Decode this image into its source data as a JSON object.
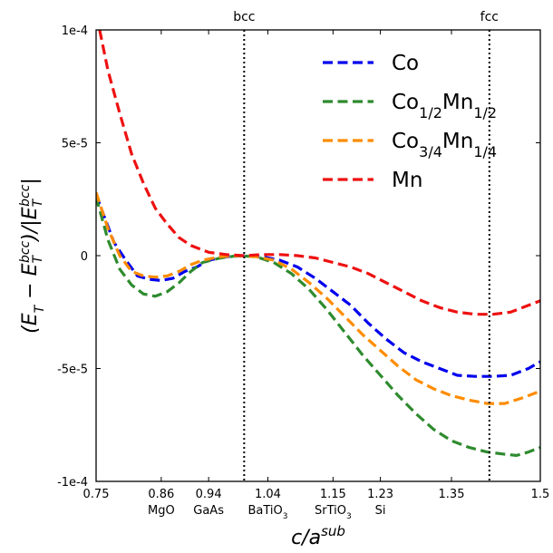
{
  "chart_data": {
    "type": "line",
    "xlabel": "c/a^sub",
    "ylabel": "(E_T − E_T^bcc)/|E_T^bcc|",
    "xlim": [
      0.75,
      1.5
    ],
    "ylim": [
      -0.0001,
      0.0001
    ],
    "x_ticks": [
      "0.75",
      "0.86",
      "0.94",
      "1.04",
      "1.15",
      "1.23",
      "1.35",
      "1.5"
    ],
    "x_tick_values": [
      0.75,
      0.86,
      0.94,
      1.04,
      1.15,
      1.23,
      1.35,
      1.5
    ],
    "x_sublabels": [
      {
        "x": 0.86,
        "text": "MgO"
      },
      {
        "x": 0.94,
        "text": "GaAs"
      },
      {
        "x": 1.04,
        "text": "BaTiO",
        "sub": "3"
      },
      {
        "x": 1.15,
        "text": "SrTiO",
        "sub": "3"
      },
      {
        "x": 1.23,
        "text": "Si"
      }
    ],
    "y_ticks": [
      "1e-4",
      "5e-5",
      "0",
      "-5e-5",
      "-1e-4"
    ],
    "y_tick_values": [
      0.0001,
      5e-05,
      0,
      -5e-05,
      -0.0001
    ],
    "vlines": [
      {
        "x": 1.0,
        "label": "bcc"
      },
      {
        "x": 1.414,
        "label": "fcc"
      }
    ],
    "legend_position": "top-right",
    "grid": false,
    "series": [
      {
        "name": "Co",
        "base": "Co",
        "sub1": "",
        "el2": "",
        "sub2": "",
        "color": "#0000ee",
        "x": [
          0.75,
          0.78,
          0.8,
          0.82,
          0.84,
          0.86,
          0.88,
          0.9,
          0.92,
          0.94,
          0.97,
          1.0,
          1.03,
          1.06,
          1.09,
          1.12,
          1.15,
          1.18,
          1.21,
          1.24,
          1.27,
          1.3,
          1.33,
          1.36,
          1.39,
          1.42,
          1.45,
          1.48,
          1.5
        ],
        "y": [
          2.7e-05,
          6e-06,
          -2e-06,
          -9e-06,
          -1.05e-05,
          -1.1e-05,
          -1e-05,
          -7e-06,
          -5e-06,
          -2e-06,
          -5e-07,
          0,
          -5e-07,
          -2e-06,
          -5e-06,
          -1e-05,
          -1.6e-05,
          -2.2e-05,
          -3e-05,
          -3.7e-05,
          -4.3e-05,
          -4.7e-05,
          -5e-05,
          -5.3e-05,
          -5.35e-05,
          -5.35e-05,
          -5.3e-05,
          -5e-05,
          -4.7e-05
        ]
      },
      {
        "name": "Co1/2Mn1/2",
        "base": "Co",
        "sub1": "1/2",
        "el2": "Mn",
        "sub2": "1/2",
        "color": "#2e8b2e",
        "x": [
          0.75,
          0.77,
          0.79,
          0.81,
          0.83,
          0.85,
          0.87,
          0.89,
          0.91,
          0.93,
          0.96,
          0.99,
          1.02,
          1.05,
          1.08,
          1.11,
          1.14,
          1.17,
          1.2,
          1.23,
          1.26,
          1.29,
          1.32,
          1.35,
          1.38,
          1.41,
          1.44,
          1.46,
          1.48,
          1.5
        ],
        "y": [
          2.6e-05,
          7e-06,
          -6e-06,
          -1.3e-05,
          -1.7e-05,
          -1.8e-05,
          -1.6e-05,
          -1.2e-05,
          -7e-06,
          -3e-06,
          -1e-06,
          0,
          -5e-07,
          -3e-06,
          -8e-06,
          -1.5e-05,
          -2.4e-05,
          -3.4e-05,
          -4.4e-05,
          -5.3e-05,
          -6.2e-05,
          -7e-05,
          -7.7e-05,
          -8.2e-05,
          -8.5e-05,
          -8.7e-05,
          -8.8e-05,
          -8.85e-05,
          -8.7e-05,
          -8.5e-05
        ]
      },
      {
        "name": "Co3/4Mn1/4",
        "base": "Co",
        "sub1": "3/4",
        "el2": "Mn",
        "sub2": "1/4",
        "color": "#ff8c00",
        "x": [
          0.75,
          0.77,
          0.79,
          0.81,
          0.83,
          0.85,
          0.87,
          0.89,
          0.91,
          0.93,
          0.96,
          0.99,
          1.02,
          1.05,
          1.08,
          1.11,
          1.14,
          1.17,
          1.2,
          1.23,
          1.26,
          1.29,
          1.32,
          1.35,
          1.38,
          1.41,
          1.44,
          1.47,
          1.5
        ],
        "y": [
          2.8e-05,
          1.2e-05,
          0,
          -7e-06,
          -9e-06,
          -9.5e-06,
          -9e-06,
          -7e-06,
          -4e-06,
          -2e-06,
          -5e-07,
          0,
          -5e-07,
          -2e-06,
          -6e-06,
          -1.2e-05,
          -1.9e-05,
          -2.7e-05,
          -3.5e-05,
          -4.2e-05,
          -4.9e-05,
          -5.5e-05,
          -5.9e-05,
          -6.2e-05,
          -6.4e-05,
          -6.55e-05,
          -6.55e-05,
          -6.3e-05,
          -6e-05
        ]
      },
      {
        "name": "Mn",
        "base": "Mn",
        "sub1": "",
        "el2": "",
        "sub2": "",
        "color": "#ee1111",
        "x": [
          0.756,
          0.77,
          0.79,
          0.81,
          0.83,
          0.85,
          0.87,
          0.89,
          0.91,
          0.94,
          0.97,
          1.0,
          1.03,
          1.06,
          1.09,
          1.12,
          1.15,
          1.18,
          1.21,
          1.24,
          1.27,
          1.3,
          1.33,
          1.36,
          1.39,
          1.42,
          1.45,
          1.48,
          1.5
        ],
        "y": [
          0.0001,
          8.2e-05,
          6.3e-05,
          4.5e-05,
          3.2e-05,
          2.1e-05,
          1.4e-05,
          8e-06,
          4.5e-06,
          1.5e-06,
          5e-07,
          0,
          5e-07,
          5e-07,
          0,
          -1e-06,
          -3e-06,
          -5e-06,
          -8e-06,
          -1.2e-05,
          -1.6e-05,
          -2e-05,
          -2.3e-05,
          -2.5e-05,
          -2.6e-05,
          -2.6e-05,
          -2.5e-05,
          -2.2e-05,
          -2e-05
        ]
      }
    ]
  }
}
